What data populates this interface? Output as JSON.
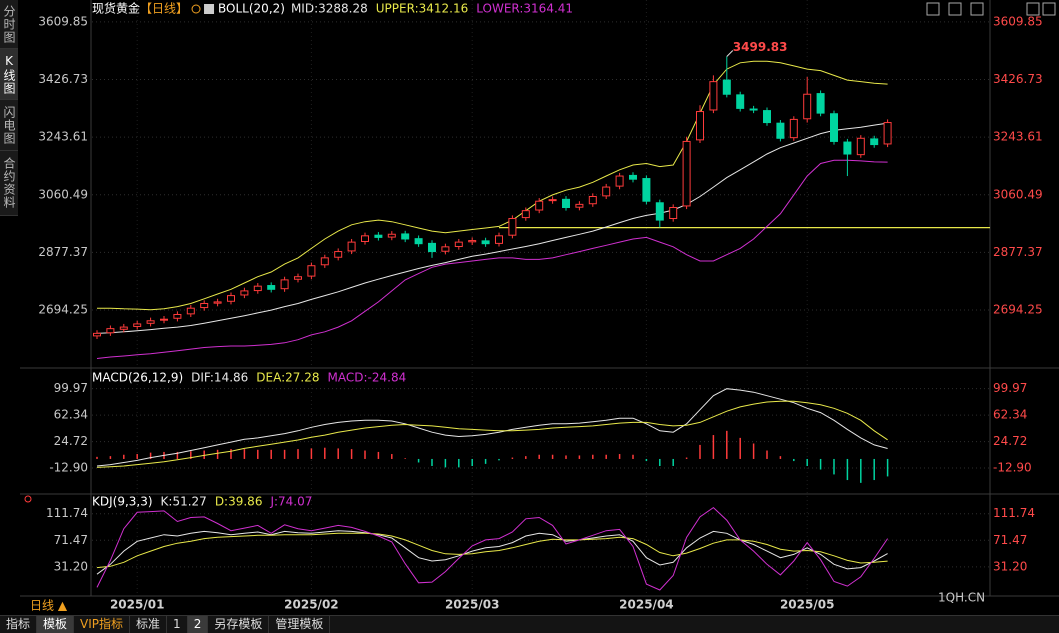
{
  "chart_data": [
    {
      "type": "candlestick",
      "title": "现货黄金",
      "period": "【日线】",
      "indicator": "BOLL(20,2)",
      "categories": [
        null,
        null,
        null,
        "2025/01",
        null,
        null,
        null,
        null,
        null,
        null,
        null,
        null,
        null,
        null,
        null,
        null,
        "2025/02",
        null,
        null,
        null,
        null,
        null,
        null,
        null,
        null,
        null,
        null,
        null,
        "2025/03",
        null,
        null,
        null,
        null,
        null,
        null,
        null,
        null,
        null,
        null,
        null,
        null,
        "2025/04",
        null,
        null,
        null,
        null,
        null,
        null,
        null,
        null,
        null,
        null,
        null,
        "2025/05",
        null,
        null,
        null,
        null,
        null,
        null
      ],
      "open": [
        2612,
        2622,
        2633,
        2642,
        2652,
        2662,
        2668,
        2682,
        2702,
        2716,
        2722,
        2742,
        2756,
        2772,
        2762,
        2792,
        2802,
        2838,
        2862,
        2882,
        2912,
        2932,
        2926,
        2936,
        2921,
        2906,
        2881,
        2896,
        2911,
        2914,
        2906,
        2932,
        2988,
        3012,
        3042,
        3046,
        3021,
        3032,
        3057,
        3088,
        3122,
        3112,
        3035,
        2985,
        3025,
        3235,
        3330,
        3425,
        3378,
        3333,
        3328,
        3288,
        3242,
        3302,
        3382,
        3318,
        3228,
        3188,
        3238,
        3222
      ],
      "high": [
        2630,
        2645,
        2650,
        2660,
        2670,
        2675,
        2690,
        2710,
        2725,
        2730,
        2750,
        2765,
        2780,
        2782,
        2800,
        2810,
        2845,
        2870,
        2890,
        2920,
        2940,
        2942,
        2945,
        2946,
        2931,
        2916,
        2905,
        2920,
        2925,
        2924,
        2940,
        2995,
        3020,
        3050,
        3055,
        3056,
        3040,
        3065,
        3095,
        3130,
        3132,
        3122,
        3045,
        3030,
        3245,
        3345,
        3440,
        3499.83,
        3388,
        3343,
        3338,
        3298,
        3310,
        3435,
        3392,
        3328,
        3238,
        3250,
        3248,
        3300
      ],
      "low": [
        2602,
        2612,
        2623,
        2632,
        2642,
        2652,
        2658,
        2672,
        2692,
        2706,
        2712,
        2732,
        2746,
        2750,
        2752,
        2782,
        2792,
        2828,
        2852,
        2872,
        2902,
        2915,
        2916,
        2910,
        2895,
        2860,
        2871,
        2886,
        2901,
        2895,
        2896,
        2922,
        2978,
        3002,
        3032,
        3010,
        3011,
        3022,
        3047,
        3078,
        3100,
        3030,
        2957,
        2975,
        3015,
        3225,
        3320,
        3370,
        3325,
        3320,
        3280,
        3230,
        3232,
        3290,
        3310,
        3220,
        3120,
        3178,
        3210,
        3212
      ],
      "close": [
        2620,
        2635,
        2640,
        2650,
        2660,
        2665,
        2680,
        2700,
        2715,
        2720,
        2740,
        2755,
        2770,
        2760,
        2790,
        2800,
        2835,
        2860,
        2880,
        2910,
        2930,
        2925,
        2935,
        2920,
        2905,
        2880,
        2895,
        2910,
        2915,
        2905,
        2930,
        2985,
        3010,
        3040,
        3045,
        3020,
        3030,
        3055,
        3085,
        3120,
        3110,
        3040,
        2980,
        3020,
        3230,
        3325,
        3420,
        3380,
        3335,
        3330,
        3290,
        3240,
        3300,
        3380,
        3320,
        3230,
        3190,
        3240,
        3220,
        3290
      ],
      "series": [
        {
          "name": "MID:3288.28",
          "color": "#e6e6e6",
          "values": [
            2620,
            2622,
            2625,
            2628,
            2632,
            2636,
            2640,
            2645,
            2652,
            2660,
            2668,
            2676,
            2685,
            2694,
            2705,
            2715,
            2728,
            2740,
            2752,
            2766,
            2780,
            2792,
            2804,
            2815,
            2826,
            2836,
            2845,
            2855,
            2865,
            2872,
            2880,
            2888,
            2896,
            2905,
            2915,
            2925,
            2935,
            2945,
            2958,
            2972,
            2985,
            2995,
            3002,
            3012,
            3030,
            3055,
            3085,
            3115,
            3140,
            3165,
            3190,
            3210,
            3225,
            3240,
            3255,
            3265,
            3270,
            3275,
            3282,
            3288.28
          ]
        },
        {
          "name": "UPPER:3412.16",
          "color": "#e8e84a",
          "values": [
            2700,
            2700,
            2698,
            2697,
            2695,
            2698,
            2705,
            2715,
            2730,
            2745,
            2760,
            2780,
            2800,
            2815,
            2840,
            2860,
            2890,
            2920,
            2945,
            2965,
            2975,
            2980,
            2975,
            2965,
            2955,
            2945,
            2940,
            2945,
            2950,
            2955,
            2960,
            2980,
            3010,
            3040,
            3060,
            3075,
            3085,
            3100,
            3120,
            3140,
            3155,
            3160,
            3150,
            3155,
            3230,
            3320,
            3410,
            3460,
            3480,
            3485,
            3485,
            3480,
            3470,
            3460,
            3455,
            3440,
            3425,
            3420,
            3415,
            3412.16
          ]
        },
        {
          "name": "LOWER:3164.41",
          "color": "#d030d0",
          "values": [
            2540,
            2545,
            2548,
            2552,
            2555,
            2560,
            2565,
            2570,
            2575,
            2578,
            2580,
            2580,
            2582,
            2585,
            2590,
            2600,
            2615,
            2625,
            2640,
            2660,
            2690,
            2720,
            2755,
            2790,
            2810,
            2830,
            2840,
            2845,
            2850,
            2855,
            2860,
            2860,
            2855,
            2855,
            2860,
            2870,
            2880,
            2890,
            2900,
            2910,
            2920,
            2925,
            2910,
            2895,
            2870,
            2850,
            2850,
            2870,
            2890,
            2920,
            2960,
            3000,
            3060,
            3120,
            3160,
            3170,
            3170,
            3168,
            3165,
            3164.41
          ]
        }
      ],
      "up_color": "#ff3b3b",
      "down_color": "#00d4a0",
      "ylim": [
        2529,
        3635
      ],
      "yticks": [
        2694.25,
        2877.37,
        3060.49,
        3243.61,
        3426.73,
        3609.85
      ],
      "support_line": 2956,
      "support_color": "#e8e84a",
      "grid": true
    },
    {
      "type": "macd",
      "indicator": "MACD(26,12,9)",
      "series": [
        {
          "name": "DIF:14.86",
          "color": "#e6e6e6",
          "values": [
            -10,
            -8,
            -5,
            -2,
            2,
            5,
            8,
            12,
            16,
            20,
            24,
            28,
            30,
            33,
            36,
            40,
            45,
            49,
            52,
            54,
            55,
            55,
            54,
            50,
            44,
            38,
            34,
            32,
            33,
            35,
            38,
            42,
            45,
            48,
            50,
            50,
            51,
            53,
            55,
            58,
            58,
            50,
            40,
            38,
            50,
            70,
            90,
            100,
            98,
            95,
            90,
            85,
            80,
            72,
            66,
            55,
            42,
            30,
            20,
            14.86
          ]
        },
        {
          "name": "DEA:27.28",
          "color": "#e8e84a",
          "values": [
            -12,
            -11,
            -10,
            -8,
            -6,
            -4,
            -1,
            2,
            5,
            8,
            11,
            15,
            18,
            21,
            24,
            27,
            31,
            34,
            38,
            41,
            44,
            46,
            48,
            49,
            48,
            47,
            45,
            43,
            42,
            41,
            40,
            40,
            41,
            42,
            44,
            45,
            46,
            47,
            49,
            51,
            52,
            52,
            49,
            47,
            48,
            52,
            60,
            68,
            74,
            78,
            81,
            82,
            82,
            80,
            77,
            72,
            65,
            55,
            40,
            27.28
          ]
        },
        {
          "name": "MACD:-24.84",
          "color": "#d030d0",
          "style": "bar",
          "values": [
            3,
            4,
            6,
            7,
            9,
            10,
            10,
            11,
            12,
            13,
            14,
            14,
            13,
            13,
            13,
            14,
            15,
            16,
            15,
            14,
            12,
            10,
            7,
            1,
            -5,
            -10,
            -12,
            -12,
            -10,
            -7,
            -2,
            2,
            4,
            6,
            6,
            5,
            5,
            6,
            6,
            7,
            6,
            -3,
            -10,
            -10,
            2,
            20,
            34,
            40,
            30,
            22,
            12,
            4,
            -3,
            -10,
            -15,
            -22,
            -30,
            -34,
            -30,
            -24.84
          ]
        }
      ],
      "up_color": "#ff3b3b",
      "down_color": "#00d4a0",
      "ylim": [
        -47,
        118
      ],
      "yticks": [
        {
          "value": -12.9,
          "label": "-12.90"
        },
        24.72,
        62.34,
        99.97
      ],
      "grid": true
    },
    {
      "type": "kdj",
      "indicator": "KDJ(9,3,3)",
      "series": [
        {
          "name": "K:51.27",
          "color": "#e6e6e6",
          "values": [
            20,
            35,
            55,
            70,
            75,
            80,
            78,
            82,
            85,
            83,
            80,
            82,
            84,
            80,
            85,
            83,
            82,
            84,
            86,
            85,
            83,
            80,
            75,
            60,
            45,
            40,
            42,
            48,
            55,
            60,
            62,
            68,
            78,
            82,
            80,
            70,
            72,
            75,
            78,
            80,
            70,
            45,
            34,
            38,
            60,
            75,
            85,
            82,
            72,
            65,
            55,
            45,
            50,
            60,
            50,
            35,
            28,
            30,
            40,
            51.27
          ]
        },
        {
          "name": "D:39.86",
          "color": "#e8e84a",
          "values": [
            30,
            32,
            38,
            48,
            55,
            62,
            67,
            70,
            74,
            76,
            77,
            78,
            79,
            79,
            80,
            80,
            80,
            81,
            82,
            82,
            82,
            81,
            78,
            72,
            64,
            56,
            51,
            50,
            51,
            54,
            56,
            60,
            65,
            70,
            73,
            72,
            72,
            73,
            74,
            76,
            74,
            65,
            53,
            48,
            52,
            59,
            67,
            72,
            72,
            70,
            65,
            58,
            55,
            56,
            54,
            48,
            41,
            37,
            38,
            39.86
          ]
        },
        {
          "name": "J:74.07",
          "color": "#d030d0",
          "values": [
            0,
            41,
            89,
            114,
            115,
            116,
            100,
            106,
            107,
            97,
            86,
            90,
            94,
            82,
            95,
            89,
            86,
            90,
            94,
            91,
            85,
            78,
            69,
            36,
            7,
            8,
            24,
            44,
            63,
            72,
            74,
            84,
            104,
            106,
            94,
            66,
            72,
            79,
            86,
            88,
            62,
            5,
            -4,
            18,
            76,
            107,
            121,
            102,
            72,
            55,
            35,
            19,
            40,
            68,
            42,
            9,
            2,
            16,
            44,
            74.07
          ]
        }
      ],
      "ylim": [
        -7,
        125
      ],
      "yticks": [
        {
          "value": 31.2,
          "label": "31.20"
        },
        71.47,
        111.74
      ],
      "grid": true
    }
  ],
  "ui": {
    "side_tabs": [
      "分时图",
      "K线图",
      "闪电图",
      "合约资料"
    ],
    "period_button": "日线 ▲",
    "bottom_tabs": [
      "指标",
      "模板",
      "VIP指标",
      "标准",
      "1",
      "2",
      "另存模板",
      "管理模板"
    ],
    "watermark": "1QH.CN"
  }
}
